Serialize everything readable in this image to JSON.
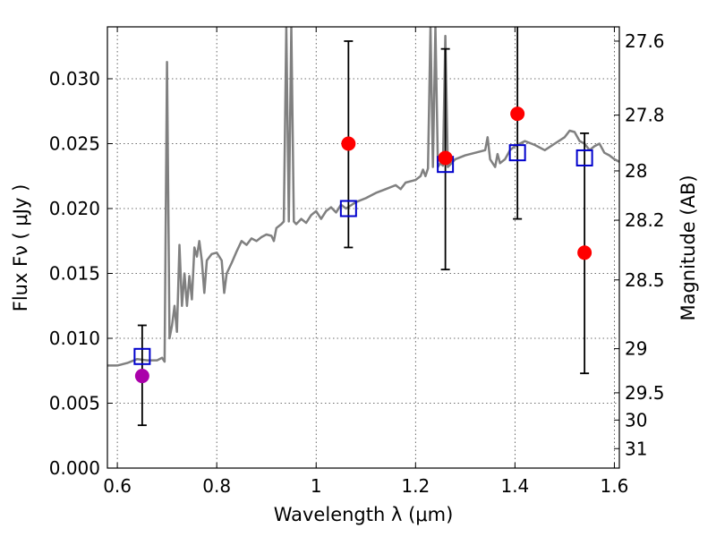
{
  "chart_data": {
    "type": "scatter",
    "title": "",
    "xlabel": "Wavelength  λ (μm)",
    "ylabel": "Flux  Fν  ( μJy )",
    "y2label": "Magnitude (AB)",
    "xlim": [
      0.58,
      1.61
    ],
    "ylim": [
      0.0,
      0.034
    ],
    "grid": true,
    "x_ticks": [
      0.6,
      0.8,
      1.0,
      1.2,
      1.4,
      1.6
    ],
    "x_tick_labels": [
      "0.6",
      "0.8",
      "1",
      "1.2",
      "1.4",
      "1.6"
    ],
    "y_ticks": [
      0.0,
      0.005,
      0.01,
      0.015,
      0.02,
      0.025,
      0.03
    ],
    "y_tick_labels": [
      "0.000",
      "0.005",
      "0.010",
      "0.015",
      "0.020",
      "0.025",
      "0.030"
    ],
    "y2_ticks": [
      {
        "label": "27.6",
        "flux": 0.0329
      },
      {
        "label": "27.8",
        "flux": 0.0272
      },
      {
        "label": "28",
        "flux": 0.0229
      },
      {
        "label": "28.2",
        "flux": 0.0191
      },
      {
        "label": "28.5",
        "flux": 0.0145
      },
      {
        "label": "29",
        "flux": 0.0092
      },
      {
        "label": "29.5",
        "flux": 0.0058
      },
      {
        "label": "30",
        "flux": 0.0037
      },
      {
        "label": "31",
        "flux": 0.0015
      }
    ],
    "colors": {
      "spectrum": "#808080",
      "model_points": "#0000cc",
      "red_points": "#ff0000",
      "magenta_point": "#aa00aa",
      "errorbar": "#000000"
    },
    "series": [
      {
        "kind": "line",
        "points": [
          [
            0.58,
            0.0079
          ],
          [
            0.6,
            0.0079
          ],
          [
            0.62,
            0.0081
          ],
          [
            0.64,
            0.0084
          ],
          [
            0.66,
            0.0083
          ],
          [
            0.68,
            0.0083
          ],
          [
            0.69,
            0.0085
          ],
          [
            0.695,
            0.0082
          ],
          [
            0.7,
            0.0313
          ],
          [
            0.705,
            0.01
          ],
          [
            0.71,
            0.011
          ],
          [
            0.715,
            0.0125
          ],
          [
            0.72,
            0.0105
          ],
          [
            0.725,
            0.0172
          ],
          [
            0.73,
            0.0125
          ],
          [
            0.735,
            0.015
          ],
          [
            0.74,
            0.0125
          ],
          [
            0.745,
            0.0148
          ],
          [
            0.75,
            0.013
          ],
          [
            0.755,
            0.017
          ],
          [
            0.76,
            0.0163
          ],
          [
            0.765,
            0.0175
          ],
          [
            0.77,
            0.016
          ],
          [
            0.775,
            0.0135
          ],
          [
            0.78,
            0.016
          ],
          [
            0.79,
            0.0165
          ],
          [
            0.8,
            0.0166
          ],
          [
            0.81,
            0.016
          ],
          [
            0.815,
            0.0135
          ],
          [
            0.82,
            0.015
          ],
          [
            0.83,
            0.0158
          ],
          [
            0.84,
            0.0167
          ],
          [
            0.85,
            0.0175
          ],
          [
            0.86,
            0.0172
          ],
          [
            0.87,
            0.0177
          ],
          [
            0.88,
            0.0175
          ],
          [
            0.89,
            0.0178
          ],
          [
            0.9,
            0.018
          ],
          [
            0.91,
            0.0179
          ],
          [
            0.915,
            0.0175
          ],
          [
            0.92,
            0.0185
          ],
          [
            0.93,
            0.0188
          ],
          [
            0.935,
            0.019
          ],
          [
            0.94,
            0.034
          ],
          [
            0.945,
            0.019
          ],
          [
            0.95,
            0.034
          ],
          [
            0.955,
            0.019
          ],
          [
            0.96,
            0.0188
          ],
          [
            0.97,
            0.0192
          ],
          [
            0.98,
            0.0189
          ],
          [
            0.99,
            0.0195
          ],
          [
            1.0,
            0.0198
          ],
          [
            1.01,
            0.0192
          ],
          [
            1.02,
            0.0198
          ],
          [
            1.03,
            0.0201
          ],
          [
            1.04,
            0.0197
          ],
          [
            1.05,
            0.0203
          ],
          [
            1.06,
            0.02
          ],
          [
            1.08,
            0.0205
          ],
          [
            1.1,
            0.0208
          ],
          [
            1.12,
            0.0212
          ],
          [
            1.14,
            0.0215
          ],
          [
            1.16,
            0.0218
          ],
          [
            1.17,
            0.0215
          ],
          [
            1.18,
            0.022
          ],
          [
            1.2,
            0.0222
          ],
          [
            1.21,
            0.0225
          ],
          [
            1.215,
            0.023
          ],
          [
            1.22,
            0.0225
          ],
          [
            1.225,
            0.0231
          ],
          [
            1.23,
            0.034
          ],
          [
            1.235,
            0.0232
          ],
          [
            1.24,
            0.034
          ],
          [
            1.245,
            0.0232
          ],
          [
            1.25,
            0.0235
          ],
          [
            1.255,
            0.0233
          ],
          [
            1.26,
            0.0333
          ],
          [
            1.265,
            0.0232
          ],
          [
            1.28,
            0.0238
          ],
          [
            1.3,
            0.0241
          ],
          [
            1.32,
            0.0243
          ],
          [
            1.34,
            0.0245
          ],
          [
            1.345,
            0.0255
          ],
          [
            1.35,
            0.0238
          ],
          [
            1.36,
            0.0232
          ],
          [
            1.365,
            0.0242
          ],
          [
            1.37,
            0.0235
          ],
          [
            1.38,
            0.0238
          ],
          [
            1.39,
            0.0245
          ],
          [
            1.4,
            0.0248
          ],
          [
            1.41,
            0.025
          ],
          [
            1.42,
            0.0252
          ],
          [
            1.44,
            0.0249
          ],
          [
            1.46,
            0.0245
          ],
          [
            1.48,
            0.025
          ],
          [
            1.5,
            0.0255
          ],
          [
            1.51,
            0.026
          ],
          [
            1.52,
            0.0259
          ],
          [
            1.53,
            0.0252
          ],
          [
            1.54,
            0.025
          ],
          [
            1.55,
            0.0245
          ],
          [
            1.56,
            0.0248
          ],
          [
            1.57,
            0.025
          ],
          [
            1.58,
            0.0243
          ],
          [
            1.59,
            0.0241
          ],
          [
            1.6,
            0.0238
          ],
          [
            1.61,
            0.0236
          ]
        ]
      },
      {
        "kind": "squares",
        "points": [
          [
            0.65,
            0.0086
          ],
          [
            1.065,
            0.02
          ],
          [
            1.26,
            0.0234
          ],
          [
            1.405,
            0.0243
          ],
          [
            1.54,
            0.0239
          ]
        ]
      },
      {
        "kind": "circles",
        "points": [
          [
            1.065,
            0.025
          ],
          [
            1.26,
            0.0239
          ],
          [
            1.405,
            0.0273
          ],
          [
            1.54,
            0.0166
          ]
        ],
        "errors": [
          [
            0.017,
            0.0329
          ],
          [
            0.0153,
            0.0323
          ],
          [
            0.0192,
            0.0345
          ],
          [
            0.0073,
            0.0258
          ]
        ]
      },
      {
        "kind": "circles-magenta",
        "points": [
          [
            0.65,
            0.0071
          ]
        ],
        "errors": [
          [
            0.0033,
            0.011
          ]
        ]
      }
    ]
  }
}
